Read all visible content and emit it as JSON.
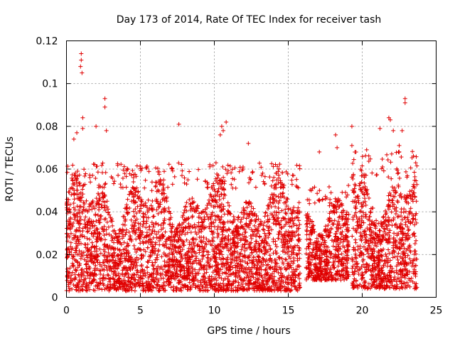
{
  "chart_data": {
    "type": "scatter",
    "title": "Day 173 of 2014, Rate Of TEC Index for receiver tash",
    "xlabel": "GPS time / hours",
    "ylabel": "ROTI / TECUs",
    "xlim": [
      0,
      25
    ],
    "ylim": [
      0,
      0.12
    ],
    "x_ticks": [
      0,
      5,
      10,
      15,
      20,
      25
    ],
    "x_tick_labels": [
      "0",
      "5",
      "10",
      "15",
      "20",
      "25"
    ],
    "y_ticks": [
      0,
      0.02,
      0.04,
      0.06,
      0.08,
      0.1,
      0.12
    ],
    "y_tick_labels": [
      "0",
      "0.02",
      "0.04",
      "0.06",
      "0.08",
      "0.1",
      "0.12"
    ],
    "grid": true,
    "marker": "plus",
    "color": "#e00000",
    "series": [
      {
        "name": "ROTI",
        "coverage_segments": [
          {
            "x_start": 0.0,
            "x_end": 15.8,
            "y_min": 0.003,
            "y_max": 0.06
          },
          {
            "x_start": 16.2,
            "x_end": 19.1,
            "y_min": 0.008,
            "y_max": 0.05
          },
          {
            "x_start": 19.3,
            "x_end": 23.7,
            "y_min": 0.004,
            "y_max": 0.065
          }
        ],
        "notable_points": [
          {
            "x": 1.0,
            "y": 0.114
          },
          {
            "x": 1.0,
            "y": 0.111
          },
          {
            "x": 0.95,
            "y": 0.108
          },
          {
            "x": 1.05,
            "y": 0.105
          },
          {
            "x": 2.6,
            "y": 0.093
          },
          {
            "x": 2.6,
            "y": 0.089
          },
          {
            "x": 2.7,
            "y": 0.078
          },
          {
            "x": 2.0,
            "y": 0.08
          },
          {
            "x": 0.7,
            "y": 0.077
          },
          {
            "x": 0.5,
            "y": 0.074
          },
          {
            "x": 1.1,
            "y": 0.084
          },
          {
            "x": 1.1,
            "y": 0.079
          },
          {
            "x": 7.6,
            "y": 0.081
          },
          {
            "x": 10.5,
            "y": 0.08
          },
          {
            "x": 10.6,
            "y": 0.078
          },
          {
            "x": 10.4,
            "y": 0.076
          },
          {
            "x": 10.8,
            "y": 0.082
          },
          {
            "x": 12.3,
            "y": 0.072
          },
          {
            "x": 17.1,
            "y": 0.068
          },
          {
            "x": 18.2,
            "y": 0.076
          },
          {
            "x": 18.3,
            "y": 0.07
          },
          {
            "x": 19.3,
            "y": 0.08
          },
          {
            "x": 19.3,
            "y": 0.071
          },
          {
            "x": 21.2,
            "y": 0.079
          },
          {
            "x": 21.8,
            "y": 0.084
          },
          {
            "x": 21.9,
            "y": 0.083
          },
          {
            "x": 22.1,
            "y": 0.078
          },
          {
            "x": 22.9,
            "y": 0.093
          },
          {
            "x": 22.9,
            "y": 0.091
          },
          {
            "x": 22.7,
            "y": 0.078
          },
          {
            "x": 22.5,
            "y": 0.071
          },
          {
            "x": 20.3,
            "y": 0.069
          }
        ]
      }
    ]
  }
}
